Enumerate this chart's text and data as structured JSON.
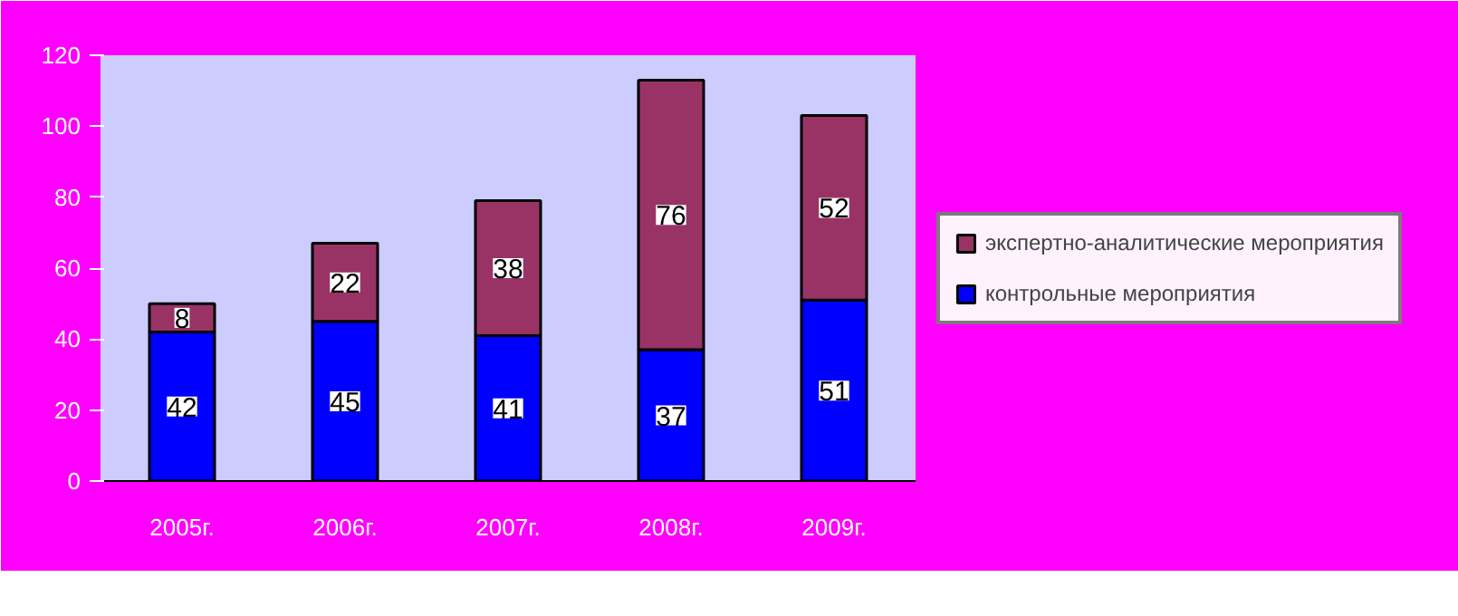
{
  "chart_data": {
    "type": "bar",
    "stacked": true,
    "categories": [
      "2005г.",
      "2006г.",
      "2007г.",
      "2008г.",
      "2009г."
    ],
    "series": [
      {
        "name": "контрольные мероприятия",
        "color": "#0000ff",
        "values": [
          42,
          45,
          41,
          37,
          51
        ]
      },
      {
        "name": "экспертно-аналитические мероприятия",
        "color": "#993366",
        "values": [
          8,
          22,
          38,
          76,
          52
        ]
      }
    ],
    "ylim": [
      0,
      120
    ],
    "yticks": [
      0,
      20,
      40,
      60,
      80,
      100,
      120
    ],
    "grid": false,
    "legend": "right",
    "data_labels": true
  }
}
